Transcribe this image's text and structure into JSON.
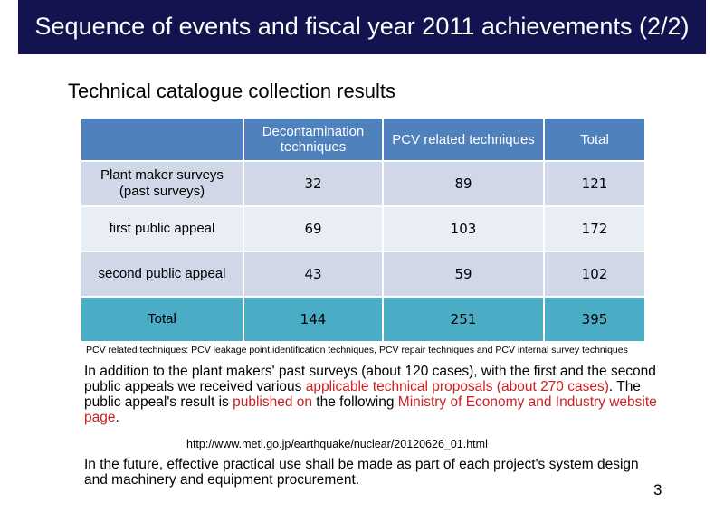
{
  "slide": {
    "title": "Sequence of events and fiscal year 2011 achievements (2/2)",
    "subtitle": "Technical catalogue collection results",
    "page_number": "3"
  },
  "table": {
    "headers": [
      "",
      "Decontamination techniques",
      "PCV related techniques",
      "Total"
    ],
    "rows": [
      {
        "label": "Plant maker surveys (past surveys)",
        "decon": "32",
        "pcv": "89",
        "total": "121"
      },
      {
        "label": "first public appeal",
        "decon": "69",
        "pcv": "103",
        "total": "172"
      },
      {
        "label": "second public appeal",
        "decon": "43",
        "pcv": "59",
        "total": "102"
      }
    ],
    "total_row": {
      "label": "Total",
      "decon": "144",
      "pcv": "251",
      "total": "395"
    }
  },
  "footnote": "PCV related techniques: PCV leakage point identification techniques, PCV repair techniques and PCV internal survey techniques",
  "paragraph1": {
    "part1": "In addition to the plant makers' past surveys (about 120 cases), with the first and the second public appeals we received various ",
    "highlight1": "applicable technical proposals (about 270 cases)",
    "part2": ". The public appeal's result is ",
    "highlight2": "published on",
    "part3": " the following ",
    "highlight3": "Ministry of Economy and Industry website page",
    "part4": "."
  },
  "url": "http://www.meti.go.jp/earthquake/nuclear/20120626_01.html",
  "paragraph2": "In the future, effective practical use shall be made as part of each project's system design and machinery and equipment procurement.",
  "colors": {
    "title_bg": "#13144f",
    "header_bg": "#4f81bd",
    "total_bg": "#4bacc6",
    "highlight": "#cc2020"
  }
}
